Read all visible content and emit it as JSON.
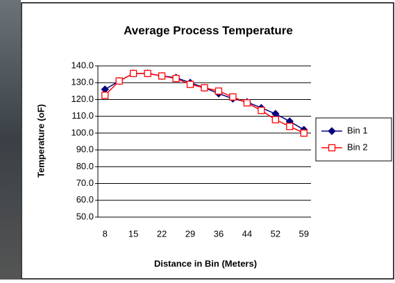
{
  "chart_data": {
    "type": "line",
    "title": "Average Process Temperature",
    "x_label": "Distance in Bin (Meters)",
    "y_label": "Temperature (oF)",
    "categories": [
      "8",
      null,
      "15",
      null,
      "22",
      null,
      "29",
      null,
      "36",
      null,
      "44",
      null,
      "52",
      null,
      "59"
    ],
    "series": [
      {
        "name": "Bin 1",
        "color": "#000080",
        "marker": "diamond",
        "values": [
          126,
          131,
          135.5,
          135.5,
          134,
          133,
          130,
          127,
          123.5,
          120.5,
          118.5,
          115,
          111.5,
          107,
          102
        ]
      },
      {
        "name": "Bin 2",
        "color": "#ff0000",
        "marker": "square",
        "values": [
          122.5,
          131,
          135.5,
          135.5,
          134,
          132.5,
          129,
          127,
          125,
          121.5,
          118,
          113.5,
          108,
          104,
          100
        ]
      }
    ],
    "ylim": [
      50,
      140
    ],
    "yticks": [
      {
        "value": 50,
        "label": "50.0"
      },
      {
        "value": 60,
        "label": "60.0"
      },
      {
        "value": 70,
        "label": "70.0"
      },
      {
        "value": 80,
        "label": "80.0"
      },
      {
        "value": 90,
        "label": "90.0"
      },
      {
        "value": 100,
        "label": "100.0"
      },
      {
        "value": 110,
        "label": "110.0"
      },
      {
        "value": 120,
        "label": "120.0"
      },
      {
        "value": 130,
        "label": "130.0"
      },
      {
        "value": 140,
        "label": "140.0"
      }
    ],
    "grid": true,
    "legend": "right"
  }
}
